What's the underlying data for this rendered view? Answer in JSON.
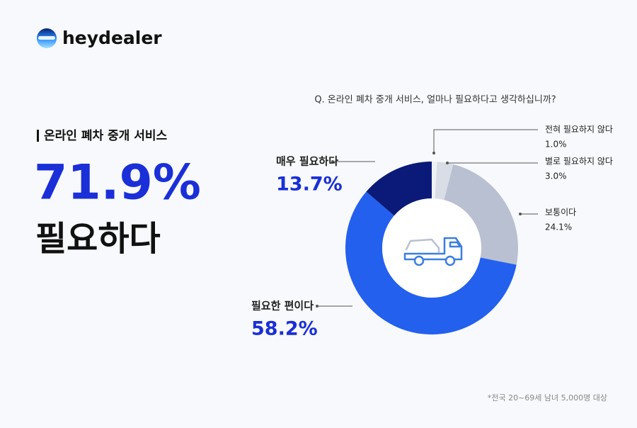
{
  "logo": "heydealer",
  "section_label": "온라인 폐차 중개 서비스",
  "headline": "71.9%",
  "headline_caption": "필요하다",
  "footnote": "*전국 20~69세 남녀 5,000명 대상",
  "chart_data": {
    "type": "donut",
    "title": "Q. 온라인 폐차 중개 서비스, 얼마나 필요하다고 생각하십니까?",
    "categories": [
      "전혀 필요하지 않다",
      "별로 필요하지 않다",
      "보통이다",
      "필요한 편이다",
      "매우 필요하다"
    ],
    "values": [
      1.0,
      3.0,
      24.1,
      58.2,
      13.7
    ],
    "value_labels": [
      "1.0%",
      "3.0%",
      "24.1%",
      "58.2%",
      "13.7%"
    ],
    "colors": [
      "#eef1f6",
      "#d9dde6",
      "#b9c0d1",
      "#2360ee",
      "#0b1a78"
    ]
  }
}
